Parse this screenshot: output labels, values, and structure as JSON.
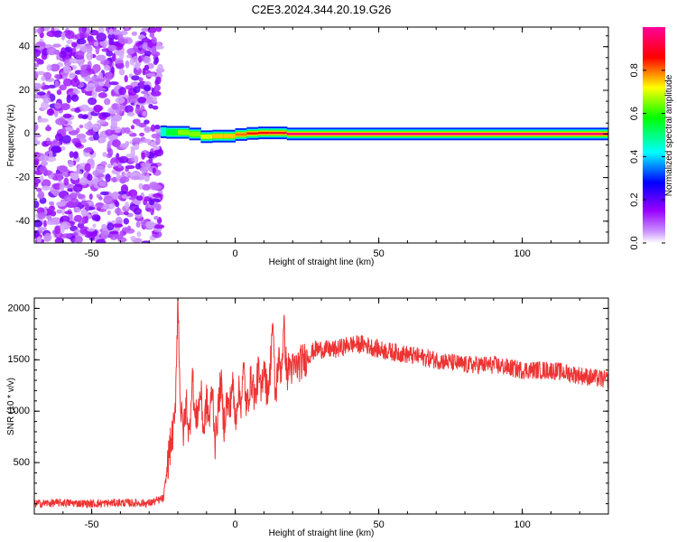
{
  "chart_data": [
    {
      "type": "heatmap",
      "title": "C2E3.2024.344.20.19.G26",
      "xlabel": "Height of straight line (km)",
      "ylabel": "Frequency (Hz)",
      "xlim": [
        -70,
        130
      ],
      "ylim": [
        -50,
        49
      ],
      "xticks": [
        -50,
        0,
        50,
        100
      ],
      "yticks": [
        -40,
        -20,
        0,
        20,
        40
      ],
      "colorbar": {
        "label": "Normalized spectral amplitude",
        "range": [
          0,
          1
        ],
        "ticks": [
          "0.0",
          "0.2",
          "0.4",
          "0.6",
          "0.8"
        ],
        "tick_values": [
          0,
          0.2,
          0.4,
          0.6,
          0.8
        ],
        "colors": [
          "#ffffff",
          "#9900ff",
          "#0000ff",
          "#00ffff",
          "#00ff00",
          "#ffff00",
          "#ff0000",
          "#ff0099"
        ]
      },
      "noise_region_x": [
        -70,
        -26
      ],
      "signal_band": [
        {
          "x": -26,
          "freq": 0.5,
          "amplitude": 0.4
        },
        {
          "x": -24,
          "freq": 1.5,
          "amplitude": 0.5
        },
        {
          "x": -20,
          "freq": 0.0,
          "amplitude": 0.6
        },
        {
          "x": -16,
          "freq": 1.5,
          "amplitude": 0.7
        },
        {
          "x": -12,
          "freq": -1.5,
          "amplitude": 0.6
        },
        {
          "x": -8,
          "freq": -1.0,
          "amplitude": 0.8
        },
        {
          "x": -4,
          "freq": -1.0,
          "amplitude": 0.7
        },
        {
          "x": 0,
          "freq": -1.0,
          "amplitude": 0.8
        },
        {
          "x": 4,
          "freq": 0.5,
          "amplitude": 0.8
        },
        {
          "x": 8,
          "freq": 0.0,
          "amplitude": 0.9
        },
        {
          "x": 12,
          "freq": 1.0,
          "amplitude": 0.85
        },
        {
          "x": 18,
          "freq": 0.0,
          "amplitude": 0.95
        },
        {
          "x": 130,
          "freq": 0.0,
          "amplitude": 1.0
        }
      ]
    },
    {
      "type": "line",
      "xlabel": "Height of straight line (km)",
      "ylabel": "SNR (10 * v/v)",
      "xlim": [
        -70,
        130
      ],
      "ylim": [
        0,
        2100
      ],
      "xticks": [
        -50,
        0,
        50,
        100
      ],
      "yticks": [
        500,
        1000,
        1500,
        2000
      ],
      "color": "#ee3333",
      "x": [
        -70,
        -60,
        -50,
        -40,
        -30,
        -25,
        -23,
        -21,
        -20,
        -19,
        -18,
        -17,
        -16,
        -15,
        -14,
        -13,
        -12,
        -11,
        -10,
        -9,
        -8,
        -7,
        -6,
        -5,
        -4,
        -3,
        -2,
        -1,
        0,
        1,
        2,
        3,
        4,
        5,
        6,
        7,
        8,
        9,
        10,
        11,
        12,
        13,
        14,
        15,
        16,
        17,
        18,
        19,
        20,
        22,
        24,
        26,
        28,
        30,
        35,
        40,
        45,
        50,
        60,
        70,
        80,
        90,
        100,
        110,
        120,
        130
      ],
      "y": [
        100,
        110,
        100,
        110,
        105,
        150,
        600,
        900,
        2100,
        1000,
        800,
        1100,
        700,
        1400,
        900,
        1000,
        1200,
        800,
        1100,
        900,
        1250,
        700,
        1000,
        1300,
        850,
        1100,
        1000,
        1300,
        900,
        1200,
        1100,
        1400,
        1000,
        1250,
        1300,
        1100,
        1400,
        1150,
        1500,
        1200,
        1300,
        1900,
        1100,
        1500,
        1400,
        1800,
        1350,
        1450,
        1400,
        1450,
        1500,
        1550,
        1600,
        1600,
        1600,
        1650,
        1650,
        1600,
        1550,
        1500,
        1450,
        1450,
        1400,
        1400,
        1350,
        1300
      ]
    }
  ]
}
